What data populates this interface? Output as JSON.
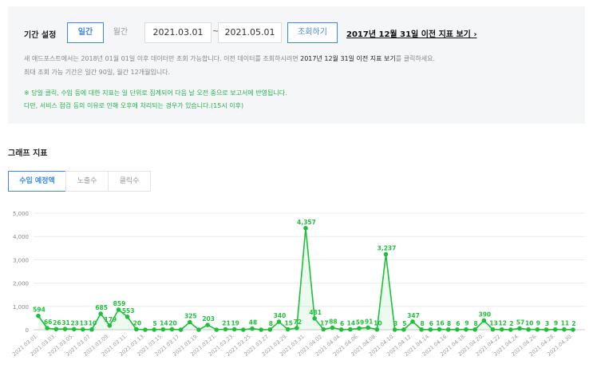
{
  "filter": {
    "label": "기간 설정",
    "daily": "일간",
    "monthly": "월간",
    "start_date": "2021.03.01",
    "separator": "~",
    "end_date": "2021.05.01",
    "search": "조회하기",
    "legacy_link": "2017년 12월 31일 이전 지표 보기 ›",
    "notice": {
      "line1_before": "새 애드포스트에서는 2018년 01월 01일 이후 데이터만 조회 가능합니다. 이전 데이터를 조회하시려면 ",
      "line1_bold": "2017년 12월 31일 이전 지표 보기",
      "line1_after": "를 클릭하세요.",
      "line2": "최대 조회 가능 기간은 일간 90일, 월간 12개월입니다.",
      "green1": "※ 당일 클릭, 수입 등에 대한 지표는 일 단위로 집계되어 다음 날 오전 중으로 보고서에 반영됩니다.",
      "green2": "다만, 서비스 점검 등의 이유로 인해 오후에 처리되는 경우가 있습니다.(15시 이후)"
    }
  },
  "section_title": "그래프 지표",
  "tabs": [
    "수입 예정액",
    "노출수",
    "클릭수"
  ],
  "chart_data": {
    "type": "line",
    "categories": [
      "2021.03.01.",
      null,
      "2021.03.03.",
      null,
      "2021.03.05.",
      null,
      "2021.03.07.",
      null,
      "2021.03.09.",
      null,
      "2021.03.11.",
      null,
      "2021.03.13.",
      null,
      "2021.03.15.",
      null,
      "2021.03.17.",
      null,
      "2021.03.19.",
      null,
      "2021.03.21.",
      null,
      "2021.03.23.",
      null,
      "2021.03.25.",
      null,
      "2021.03.27.",
      null,
      "2021.03.29.",
      null,
      "2021.03.31.",
      null,
      "2021.04.02.",
      null,
      "2021.04.04.",
      null,
      "2021.04.06.",
      null,
      "2021.04.08.",
      null,
      "2021.04.10.",
      null,
      "2021.04.12.",
      null,
      "2021.04.14.",
      null,
      "2021.04.16.",
      null,
      "2021.04.18.",
      null,
      "2021.04.20.",
      null,
      "2021.04.22.",
      null,
      "2021.04.24.",
      null,
      "2021.04.26.",
      null,
      "2021.04.28.",
      null,
      "2021.04.30."
    ],
    "values": [
      594,
      66,
      26,
      31,
      23,
      13,
      10,
      685,
      179,
      859,
      553,
      20,
      0,
      5,
      14,
      20,
      0,
      325,
      0,
      203,
      0,
      21,
      19,
      0,
      48,
      0,
      8,
      340,
      15,
      72,
      4357,
      481,
      17,
      88,
      6,
      14,
      59,
      91,
      10,
      3237,
      3,
      5,
      347,
      8,
      6,
      16,
      8,
      6,
      9,
      8,
      390,
      13,
      12,
      2,
      57,
      10,
      9,
      3,
      9,
      11,
      2
    ],
    "value_labels": [
      "594",
      "66",
      "26",
      "31",
      "23",
      "13",
      "10",
      "685",
      "179",
      "859",
      "553",
      "20",
      null,
      "5",
      "14",
      "20",
      null,
      "325",
      null,
      "203",
      null,
      "21",
      "19",
      null,
      "48",
      null,
      "8",
      "340",
      "15",
      "72",
      "4,357",
      "481",
      "17",
      "88",
      "6",
      "14",
      "59",
      "91",
      "10",
      "3,237",
      "3",
      "5",
      "347",
      "8",
      "6",
      "16",
      "8",
      "6",
      "9",
      "8",
      "390",
      "13",
      "12",
      "2",
      "57",
      "10",
      "9",
      "3",
      "9",
      "11",
      "2"
    ],
    "color": "#1fbf3a",
    "ylim": [
      0,
      5000
    ],
    "yticks": [
      0,
      {
        "value": 1000,
        "label": "1,000"
      },
      {
        "value": 2000,
        "label": "2,000"
      },
      {
        "value": 3000,
        "label": "3,000"
      },
      {
        "value": 4000,
        "label": "4,000"
      },
      {
        "value": 5000,
        "label": "5,000"
      }
    ],
    "grid": true
  }
}
